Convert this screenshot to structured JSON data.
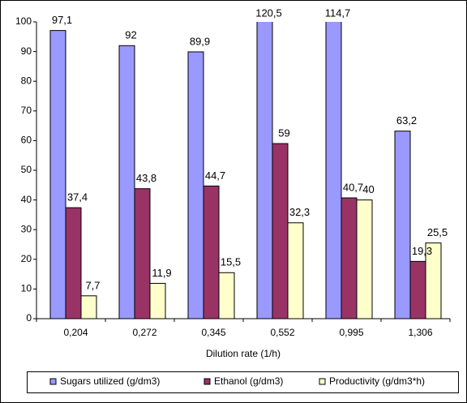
{
  "chart_data": {
    "type": "bar",
    "x_label": "Dilution rate (1/h)",
    "categories": [
      "0,204",
      "0,272",
      "0,345",
      "0,552",
      "0,995",
      "1,306"
    ],
    "series": [
      {
        "name": "Sugars utilized (g/dm3)",
        "color": "#9999ff",
        "values": [
          97.1,
          92,
          89.9,
          120.5,
          114.7,
          63.2
        ],
        "value_labels": [
          "97,1",
          "92",
          "89,9",
          "120,5",
          "114,7",
          "63,2"
        ]
      },
      {
        "name": "Ethanol (g/dm3)",
        "color": "#993366",
        "values": [
          37.4,
          43.8,
          44.7,
          59,
          40.7,
          19.3
        ],
        "value_labels": [
          "37,4",
          "43,8",
          "44,7",
          "59",
          "40,7",
          "19,3"
        ]
      },
      {
        "name": "Productivity (g/dm3*h)",
        "color": "#ffffcc",
        "values": [
          7.7,
          11.9,
          15.5,
          32.3,
          40,
          25.5
        ],
        "value_labels": [
          "7,7",
          "11,9",
          "15,5",
          "32,3",
          "40",
          "25,5"
        ]
      }
    ],
    "ylim": [
      0,
      100
    ],
    "yticks": [
      0,
      10,
      20,
      30,
      40,
      50,
      60,
      70,
      80,
      90,
      100
    ],
    "grid": false,
    "legend": "bottom"
  }
}
